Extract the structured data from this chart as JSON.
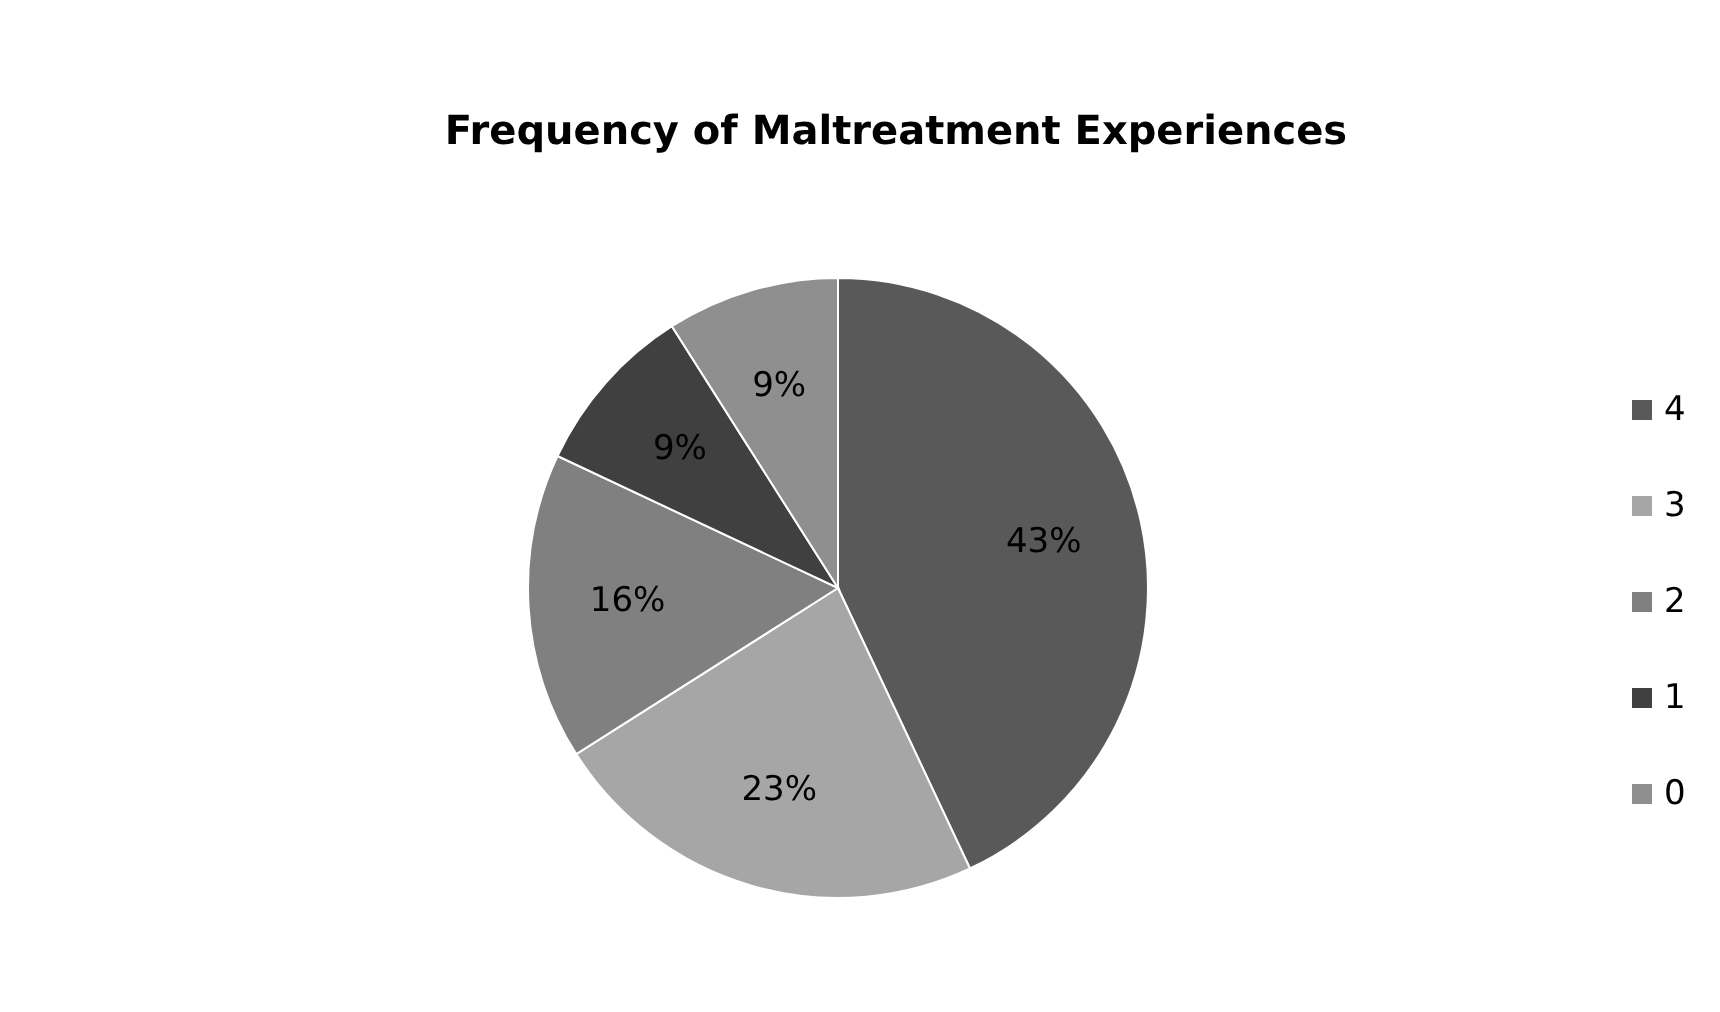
{
  "chart_data": {
    "type": "pie",
    "title": "Frequency of Maltreatment Experiences",
    "categories": [
      "4",
      "3",
      "2",
      "1",
      "0"
    ],
    "values": [
      43,
      23,
      16,
      9,
      9
    ],
    "colors": [
      "#595959",
      "#a6a6a6",
      "#808080",
      "#404040",
      "#8f8f8f"
    ],
    "value_labels": [
      "43%",
      "23%",
      "16%",
      "9%",
      "9%"
    ],
    "legend": "right"
  }
}
